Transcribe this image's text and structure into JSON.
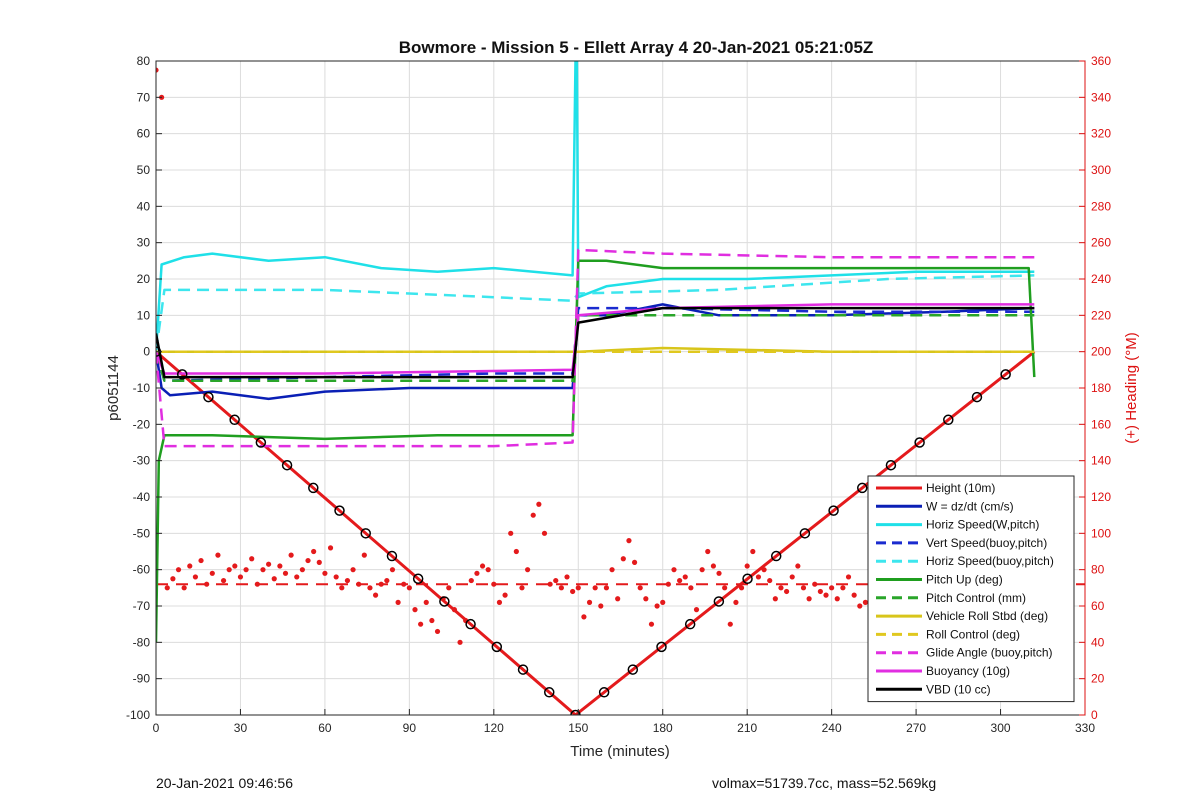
{
  "footer": {
    "left": "20-Jan-2021 09:46:56",
    "right": "volmax=51739.7cc, mass=52.569kg"
  },
  "chart_data": {
    "type": "line",
    "title": "Bowmore - Mission 5 - Ellett Array 4 20-Jan-2021 05:21:05Z",
    "xlabel": "Time (minutes)",
    "ylabel": "p6051144",
    "y2label": "(+) Heading (°M)",
    "xlim": [
      0,
      330
    ],
    "ylim": [
      -100,
      80
    ],
    "y2lim": [
      0,
      360
    ],
    "xticks": [
      0,
      30,
      60,
      90,
      120,
      150,
      180,
      210,
      240,
      270,
      300,
      330
    ],
    "yticks": [
      -100,
      -90,
      -80,
      -70,
      -60,
      -50,
      -40,
      -30,
      -20,
      -10,
      0,
      10,
      20,
      30,
      40,
      50,
      60,
      70,
      80
    ],
    "y2ticks": [
      0,
      20,
      40,
      60,
      80,
      100,
      120,
      140,
      160,
      180,
      200,
      220,
      240,
      260,
      280,
      300,
      320,
      340,
      360
    ],
    "grid": true,
    "legend_position": "bottom-right",
    "series": [
      {
        "name": "Height (10m)",
        "color": "#e41a1c",
        "style": "solid",
        "x": [
          0,
          149,
          312
        ],
        "y": [
          0,
          -100,
          0
        ]
      },
      {
        "name": "W = dz/dt (cm/s)",
        "color": "#0a1fb5",
        "style": "solid",
        "x": [
          0,
          2,
          5,
          20,
          40,
          60,
          90,
          120,
          148,
          150,
          160,
          180,
          200,
          240,
          280,
          312
        ],
        "y": [
          0,
          -10,
          -12,
          -11,
          -13,
          -11,
          -10,
          -10,
          -10,
          10,
          10,
          13,
          10,
          10,
          11,
          12
        ]
      },
      {
        "name": "Horiz Speed(W,pitch)",
        "color": "#1fe0e8",
        "style": "solid",
        "x": [
          0,
          2,
          10,
          20,
          40,
          60,
          80,
          100,
          120,
          148,
          149,
          149.5,
          150,
          160,
          180,
          210,
          240,
          270,
          300,
          312
        ],
        "y": [
          0,
          24,
          26,
          27,
          25,
          26,
          23,
          22,
          23,
          21,
          80,
          80,
          15,
          18,
          20,
          20,
          21,
          22,
          22,
          22
        ]
      },
      {
        "name": "Vert Speed(buoy,pitch)",
        "color": "#1a2bcf",
        "style": "dashed",
        "x": [
          0,
          3,
          60,
          120,
          148,
          150,
          180,
          240,
          312
        ],
        "y": [
          0,
          -8,
          -7,
          -6,
          -6,
          12,
          12,
          11,
          11
        ]
      },
      {
        "name": "Horiz Speed(buoy,pitch)",
        "color": "#3de6ee",
        "style": "dashed",
        "x": [
          0,
          3,
          60,
          120,
          148,
          150,
          200,
          260,
          312
        ],
        "y": [
          0,
          17,
          17,
          15,
          14,
          16,
          17,
          20,
          21
        ]
      },
      {
        "name": "Pitch Up (deg)",
        "color": "#1f9e1f",
        "style": "solid",
        "x": [
          0,
          1,
          3,
          20,
          60,
          100,
          148,
          150,
          160,
          180,
          240,
          300,
          310,
          312
        ],
        "y": [
          -80,
          -30,
          -23,
          -23,
          -24,
          -23,
          -23,
          25,
          25,
          23,
          23,
          23,
          23,
          -7
        ]
      },
      {
        "name": "Pitch Control (mm)",
        "color": "#2aa52a",
        "style": "dashed",
        "x": [
          0,
          3,
          60,
          120,
          148,
          150,
          180,
          240,
          312
        ],
        "y": [
          0,
          -8,
          -8,
          -8,
          -8,
          10,
          10,
          10,
          10
        ]
      },
      {
        "name": "Vehicle Roll Stbd (deg)",
        "color": "#d8c51a",
        "style": "solid",
        "x": [
          0,
          3,
          60,
          100,
          140,
          150,
          180,
          240,
          312
        ],
        "y": [
          0,
          0,
          0,
          0,
          0,
          0,
          1,
          0,
          0
        ]
      },
      {
        "name": "Roll Control (deg)",
        "color": "#e0c81f",
        "style": "dashed",
        "x": [
          0,
          3,
          60,
          120,
          148,
          150,
          240,
          312
        ],
        "y": [
          0,
          0,
          0,
          0,
          0,
          0,
          0,
          0
        ]
      },
      {
        "name": "Glide Angle (buoy,pitch)",
        "color": "#e02ee0",
        "style": "dashed",
        "x": [
          0,
          3,
          60,
          120,
          148,
          150,
          180,
          240,
          312
        ],
        "y": [
          0,
          -26,
          -26,
          -26,
          -25,
          28,
          27,
          26,
          26
        ]
      },
      {
        "name": "Buoyancy (10g)",
        "color": "#e12ee1",
        "style": "solid",
        "x": [
          0,
          3,
          60,
          148,
          150,
          180,
          240,
          312
        ],
        "y": [
          0,
          -6,
          -6,
          -5,
          10,
          12,
          13,
          13
        ]
      },
      {
        "name": "VBD (10 cc)",
        "color": "#000000",
        "style": "solid",
        "x": [
          0,
          3,
          60,
          148,
          150,
          180,
          240,
          312
        ],
        "y": [
          5,
          -7,
          -7,
          -7,
          8,
          12,
          12,
          12
        ]
      }
    ],
    "heading": {
      "axis": "right",
      "color": "#e41a1c",
      "style": "dots",
      "mean": 72,
      "x": [
        0,
        2,
        4,
        6,
        8,
        10,
        12,
        14,
        16,
        18,
        20,
        22,
        24,
        26,
        28,
        30,
        32,
        34,
        36,
        38,
        40,
        42,
        44,
        46,
        48,
        50,
        52,
        54,
        56,
        58,
        60,
        62,
        64,
        66,
        68,
        70,
        72,
        74,
        76,
        78,
        80,
        82,
        84,
        86,
        88,
        90,
        92,
        94,
        96,
        98,
        100,
        102,
        104,
        106,
        108,
        110,
        112,
        114,
        116,
        118,
        120,
        122,
        124,
        126,
        128,
        130,
        132,
        134,
        136,
        138,
        140,
        142,
        144,
        146,
        148,
        150,
        152,
        154,
        156,
        158,
        160,
        162,
        164,
        166,
        168,
        170,
        172,
        174,
        176,
        178,
        180,
        182,
        184,
        186,
        188,
        190,
        192,
        194,
        196,
        198,
        200,
        202,
        204,
        206,
        208,
        210,
        212,
        214,
        216,
        218,
        220,
        222,
        224,
        226,
        228,
        230,
        232,
        234,
        236,
        238,
        240,
        242,
        244,
        246,
        248,
        250,
        252,
        254,
        256,
        258,
        260,
        262,
        264,
        266,
        268,
        270,
        272,
        274,
        276,
        278,
        280,
        282,
        284,
        286,
        288,
        290,
        292,
        294,
        296,
        298,
        300,
        302,
        304,
        306,
        308,
        310,
        312
      ],
      "y": [
        355,
        340,
        70,
        75,
        80,
        70,
        82,
        76,
        85,
        72,
        78,
        88,
        74,
        80,
        82,
        76,
        80,
        86,
        72,
        80,
        83,
        75,
        82,
        78,
        88,
        76,
        80,
        85,
        90,
        84,
        78,
        92,
        76,
        70,
        74,
        80,
        72,
        88,
        70,
        66,
        72,
        74,
        80,
        62,
        72,
        70,
        58,
        50,
        62,
        52,
        46,
        64,
        70,
        58,
        40,
        52,
        74,
        78,
        82,
        80,
        72,
        62,
        66,
        100,
        90,
        70,
        80,
        110,
        116,
        100,
        72,
        74,
        70,
        76,
        68,
        70,
        54,
        62,
        70,
        60,
        70,
        80,
        64,
        86,
        96,
        84,
        70,
        64,
        50,
        60,
        62,
        72,
        80,
        74,
        76,
        70,
        58,
        80,
        90,
        82,
        78,
        70,
        50,
        62,
        70,
        82,
        90,
        76,
        80,
        74,
        64,
        70,
        68,
        76,
        82,
        70,
        64,
        72,
        68,
        66,
        70,
        64,
        70,
        76,
        66,
        60,
        62,
        70,
        62,
        74,
        68,
        66,
        72,
        80,
        72,
        70,
        74,
        68,
        70,
        78,
        76,
        74,
        70,
        68,
        72,
        74,
        70,
        68,
        72,
        66,
        74,
        78,
        72,
        70,
        68,
        74,
        76
      ]
    }
  }
}
